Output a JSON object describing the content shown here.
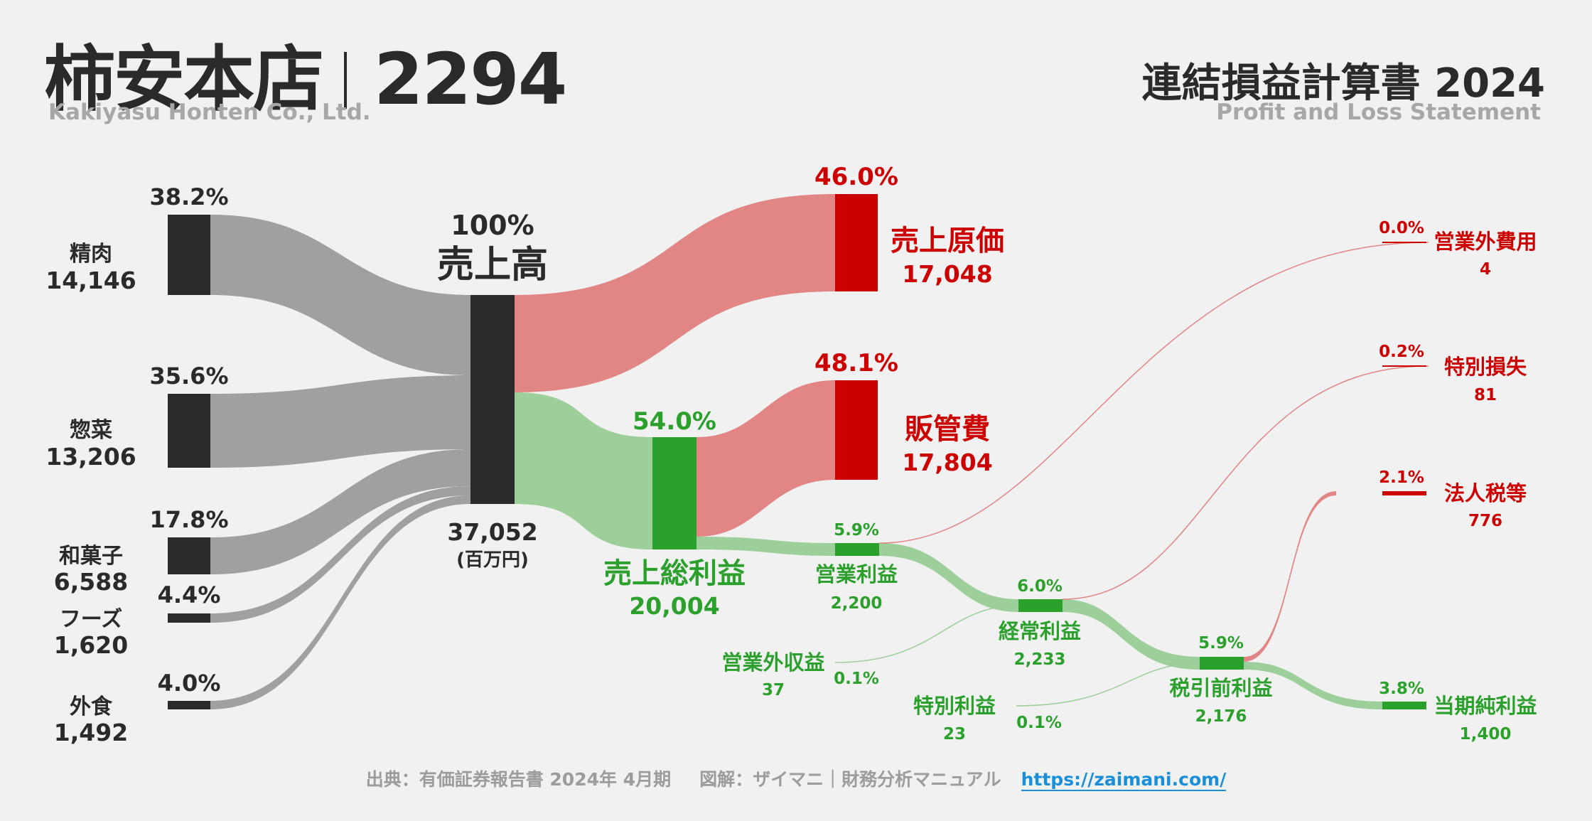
{
  "header": {
    "company_jp": "柿安本店",
    "ticker": "2294",
    "company_en": "Kakiyasu Honten Co., Ltd.",
    "statement_title": "連結損益計算書 2024",
    "statement_subtitle": "Profit and Loss Statement"
  },
  "segments": [
    {
      "name": "精肉",
      "value": "14,146",
      "pct": "38.2%"
    },
    {
      "name": "惣菜",
      "value": "13,206",
      "pct": "35.6%"
    },
    {
      "name": "和菓子",
      "value": "6,588",
      "pct": "17.8%"
    },
    {
      "name": "フーズ",
      "value": "1,620",
      "pct": "4.4%"
    },
    {
      "name": "外食",
      "value": "1,492",
      "pct": "4.0%"
    }
  ],
  "revenue": {
    "pct": "100%",
    "name": "売上高",
    "value": "37,052",
    "unit": "(百万円)"
  },
  "cogs": {
    "pct": "46.0%",
    "name": "売上原価",
    "value": "17,048"
  },
  "gross_profit": {
    "pct": "54.0%",
    "name": "売上総利益",
    "value": "20,004"
  },
  "sga": {
    "pct": "48.1%",
    "name": "販管費",
    "value": "17,804"
  },
  "operating_profit": {
    "pct": "5.9%",
    "name": "営業利益",
    "value": "2,200"
  },
  "non_op_expense": {
    "pct": "0.0%",
    "name": "営業外費用",
    "value": "4"
  },
  "non_op_income": {
    "pct": "0.1%",
    "name": "営業外収益",
    "value": "37"
  },
  "ordinary_profit": {
    "pct": "6.0%",
    "name": "経常利益",
    "value": "2,233"
  },
  "special_loss": {
    "pct": "0.2%",
    "name": "特別損失",
    "value": "81"
  },
  "special_gain": {
    "pct": "0.1%",
    "name": "特別利益",
    "value": "23"
  },
  "pretax_profit": {
    "pct": "5.9%",
    "name": "税引前利益",
    "value": "2,176"
  },
  "tax": {
    "pct": "2.1%",
    "name": "法人税等",
    "value": "776"
  },
  "net_profit": {
    "pct": "3.8%",
    "name": "当期純利益",
    "value": "1,400"
  },
  "footer": {
    "source": "出典：有価証券報告書 2024年 4月期",
    "credit": "図解：ザイマニ｜財務分析マニュアル",
    "url": "https://zaimani.com/"
  },
  "colors": {
    "dark": "#2a2a2a",
    "gray_flow": "#a0a0a0",
    "red": "#cc0000",
    "red_flow": "#e18585",
    "green": "#2ca02c",
    "green_flow": "#9dcf9a",
    "label_gray": "#a7a7a7"
  }
}
